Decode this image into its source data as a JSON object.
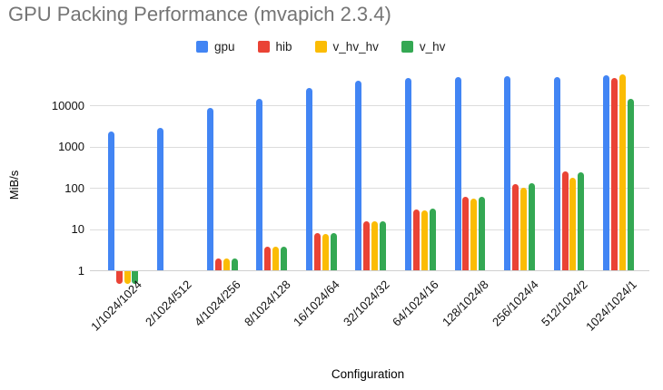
{
  "title": "GPU Packing Performance (mvapich 2.3.4)",
  "chart_data": {
    "type": "bar",
    "title": "GPU Packing Performance (mvapich 2.3.4)",
    "xlabel": "Configuration",
    "ylabel": "MiB/s",
    "y_scale": "log",
    "grid": true,
    "legend_position": "top",
    "ylim": [
      0.4,
      60000
    ],
    "y_ticks": [
      1,
      10,
      100,
      1000,
      10000
    ],
    "y_tick_labels": [
      "1",
      "10",
      "100",
      "1000",
      "10000"
    ],
    "categories": [
      "1/1024/1024",
      "2/1024/512",
      "4/1024/256",
      "8/1024/128",
      "16/1024/64",
      "32/1024/32",
      "64/1024/16",
      "128/1024/8",
      "256/1024/4",
      "512/1024/2",
      "1024/1024/1"
    ],
    "series": [
      {
        "name": "gpu",
        "color": "#4285F4",
        "values": [
          2300,
          2800,
          8600,
          14000,
          26000,
          40000,
          45000,
          47000,
          50000,
          49000,
          54000
        ]
      },
      {
        "name": "hib",
        "color": "#EA4335",
        "values": [
          0.5,
          null,
          1.9,
          3.7,
          7.8,
          15,
          29,
          60,
          125,
          245,
          46000
        ]
      },
      {
        "name": "v_hv_hv",
        "color": "#FBBC04",
        "values": [
          0.5,
          null,
          1.9,
          3.7,
          7.6,
          15,
          28,
          54,
          100,
          175,
          57000
        ]
      },
      {
        "name": "v_hv",
        "color": "#34A853",
        "values": [
          0.5,
          null,
          1.9,
          3.7,
          7.8,
          15.5,
          31,
          61,
          130,
          235,
          14000
        ]
      }
    ],
    "colors": {
      "title_text": "#757575",
      "axis_text": "#111111",
      "gridline": "#dcdcdc",
      "baseline": "#cfcfcf",
      "background": "#ffffff"
    }
  }
}
